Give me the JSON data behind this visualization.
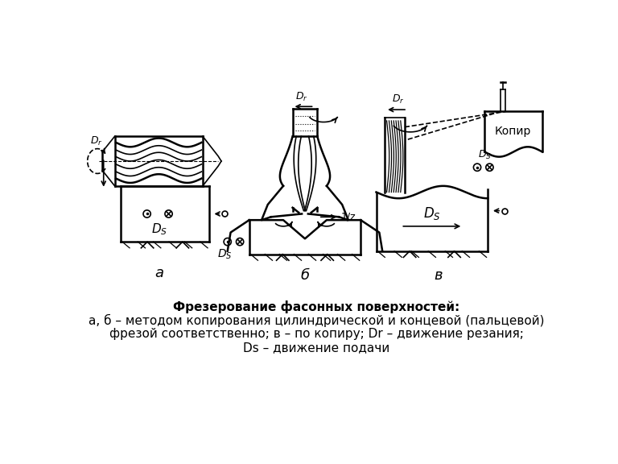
{
  "title_line1": "Фрезерование фасонных поверхностей:",
  "title_line2": "а, б – методом копирования цилиндрической и концевой (пальцевой)",
  "title_line3": "фрезой соответственно; в – по копиру; Dr – движение резания;",
  "title_line4": "Ds – движение подачи",
  "label_a": "а",
  "label_b": "б",
  "label_v": "в",
  "bg_color": "#ffffff",
  "fg_color": "#000000",
  "title_fontsize": 11,
  "label_fontsize": 13
}
